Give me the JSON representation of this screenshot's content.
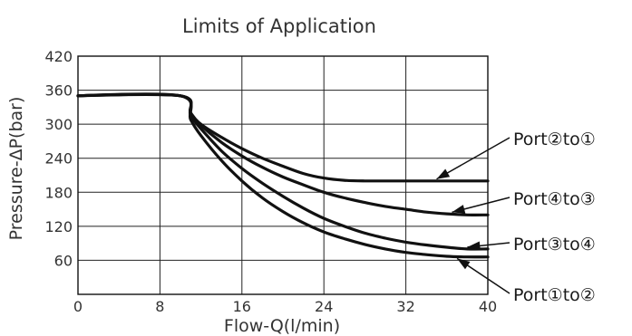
{
  "chart_data": {
    "type": "line",
    "title": "Limits of Application",
    "xlabel": "Flow-Q(l/min)",
    "ylabel": "Pressure-ΔP(bar)",
    "xlim": [
      0,
      40
    ],
    "ylim": [
      0,
      420
    ],
    "xticks": [
      0,
      8,
      16,
      24,
      32,
      40
    ],
    "yticks": [
      60,
      120,
      180,
      240,
      300,
      360,
      420
    ],
    "grid": true,
    "legend": "right, labels with leader arrows",
    "series": [
      {
        "name": "Port②to①",
        "x": [
          0,
          10,
          11,
          12,
          14,
          16,
          18,
          20,
          22,
          24,
          26,
          28,
          32,
          36,
          40
        ],
        "y": [
          350,
          350,
          320,
          300,
          277,
          257,
          240,
          226,
          213,
          205,
          201,
          200,
          200,
          200,
          200
        ]
      },
      {
        "name": "Port④to③",
        "x": [
          0,
          10,
          11,
          12,
          14,
          16,
          18,
          20,
          22,
          24,
          26,
          28,
          30,
          32,
          34,
          36,
          38,
          40
        ],
        "y": [
          350,
          350,
          318,
          298,
          268,
          244,
          224,
          207,
          193,
          180,
          170,
          162,
          155,
          150,
          145,
          142,
          140,
          140
        ]
      },
      {
        "name": "Port③to④",
        "x": [
          0,
          10,
          11,
          12,
          14,
          16,
          18,
          20,
          22,
          24,
          26,
          28,
          30,
          32,
          34,
          36,
          38,
          40
        ],
        "y": [
          350,
          350,
          315,
          292,
          253,
          222,
          196,
          173,
          152,
          134,
          120,
          108,
          99,
          92,
          87,
          83,
          80,
          80
        ]
      },
      {
        "name": "Port①to②",
        "x": [
          0,
          10,
          11,
          12,
          14,
          16,
          18,
          20,
          22,
          24,
          26,
          28,
          30,
          32,
          34,
          36,
          38,
          40
        ],
        "y": [
          350,
          350,
          308,
          280,
          236,
          200,
          170,
          146,
          126,
          110,
          98,
          88,
          80,
          74,
          70,
          67,
          66,
          66
        ]
      }
    ]
  }
}
